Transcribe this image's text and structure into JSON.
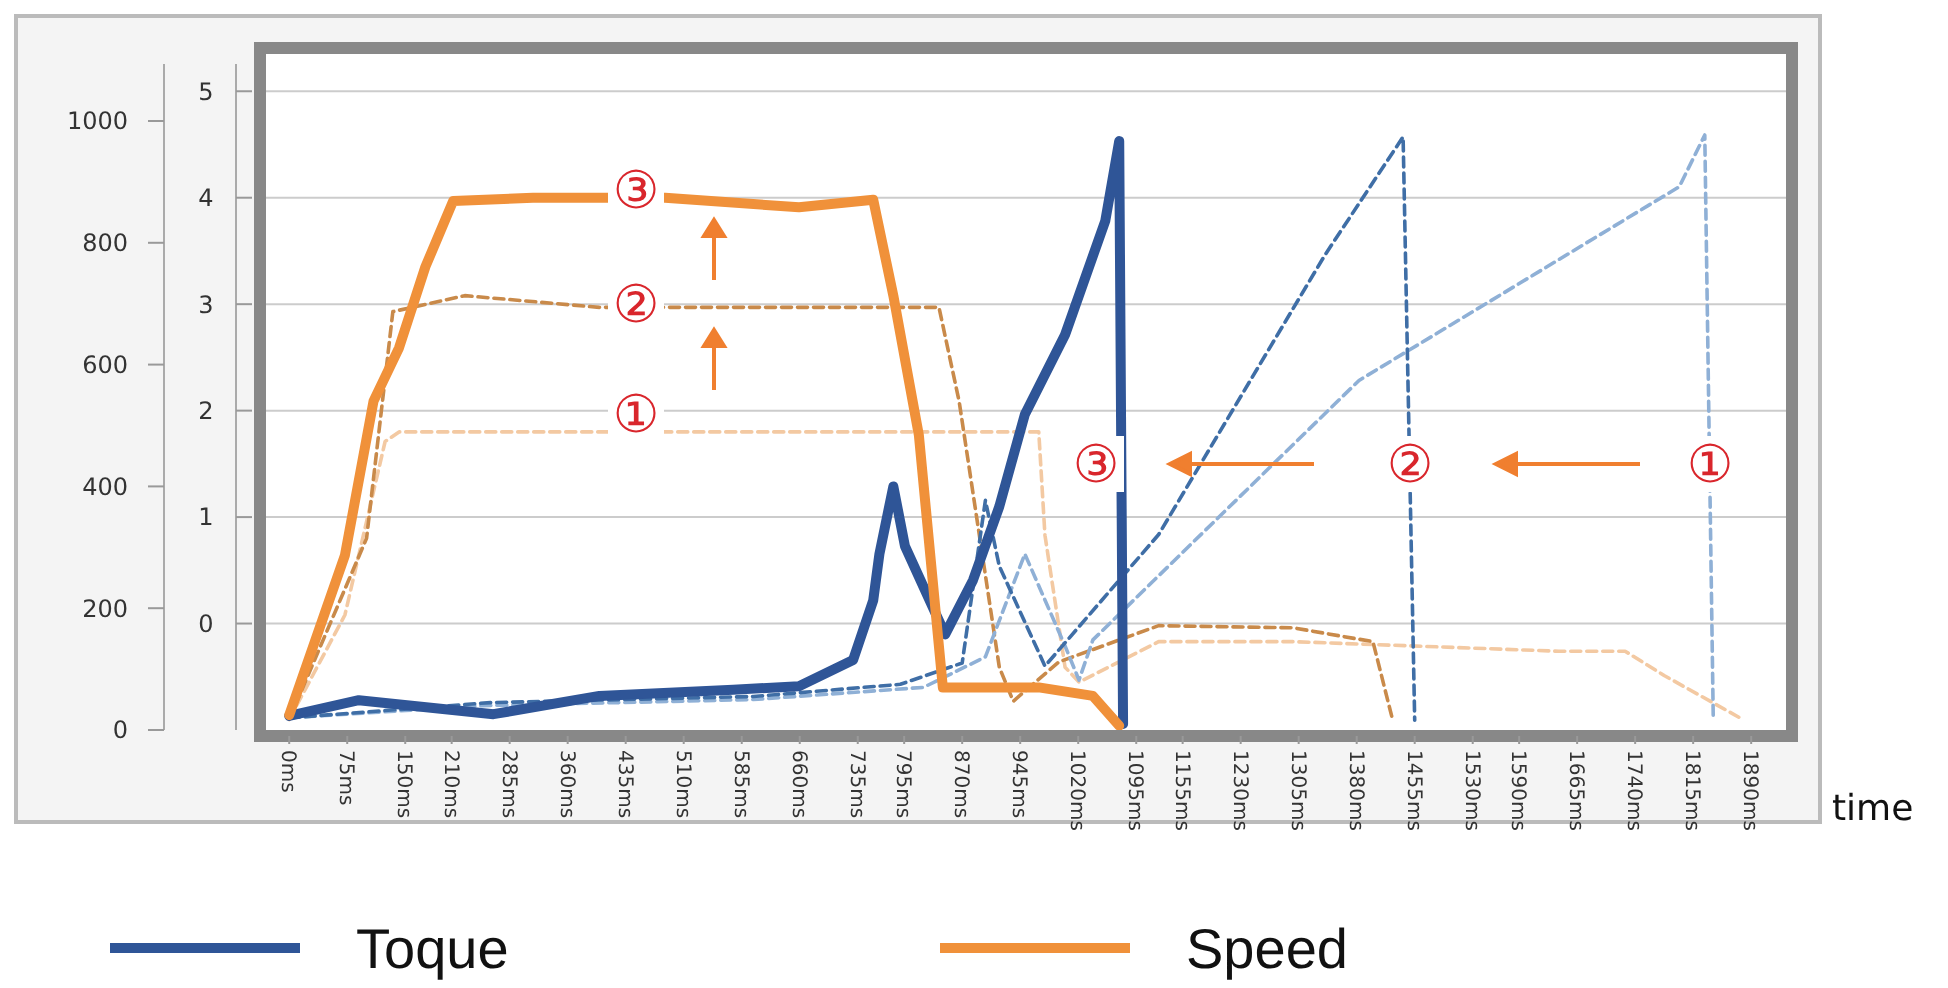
{
  "chart_data": {
    "type": "line",
    "xlabel": "time",
    "legend": "bottom",
    "grid": "y",
    "xlim": [
      -30,
      1935
    ],
    "xticks": [
      {
        "value": 0,
        "label": "0ms"
      },
      {
        "value": 75,
        "label": "75ms"
      },
      {
        "value": 150,
        "label": "150ms"
      },
      {
        "value": 210,
        "label": "210ms"
      },
      {
        "value": 285,
        "label": "285ms"
      },
      {
        "value": 360,
        "label": "360ms"
      },
      {
        "value": 435,
        "label": "435ms"
      },
      {
        "value": 510,
        "label": "510ms"
      },
      {
        "value": 585,
        "label": "585ms"
      },
      {
        "value": 660,
        "label": "660ms"
      },
      {
        "value": 735,
        "label": "735ms"
      },
      {
        "value": 795,
        "label": "795ms"
      },
      {
        "value": 870,
        "label": "870ms"
      },
      {
        "value": 945,
        "label": "945ms"
      },
      {
        "value": 1020,
        "label": "1020ms"
      },
      {
        "value": 1095,
        "label": "1095ms"
      },
      {
        "value": 1155,
        "label": "1155ms"
      },
      {
        "value": 1230,
        "label": "1230ms"
      },
      {
        "value": 1305,
        "label": "1305ms"
      },
      {
        "value": 1380,
        "label": "1380ms"
      },
      {
        "value": 1455,
        "label": "1455ms"
      },
      {
        "value": 1530,
        "label": "1530ms"
      },
      {
        "value": 1590,
        "label": "1590ms"
      },
      {
        "value": 1665,
        "label": "1665ms"
      },
      {
        "value": 1740,
        "label": "1740ms"
      },
      {
        "value": 1815,
        "label": "1815ms"
      },
      {
        "value": 1890,
        "label": "1890ms"
      }
    ],
    "ylim": [
      0,
      1110
    ],
    "yticks": [
      0,
      200,
      400,
      600,
      800,
      1000
    ],
    "y2lim": [
      -1,
      5.35
    ],
    "y2ticks": [
      0,
      1,
      2,
      3,
      4,
      5
    ],
    "series": [
      {
        "name": null,
        "color": "#f3c9a2",
        "line_style": "dashed",
        "axis": "y2",
        "x": [
          0,
          72,
          124,
          142,
          500,
          918,
          969,
          977,
          1003,
          1021,
          1124,
          1298,
          1641,
          1727,
          1778,
          1874
        ],
        "values": [
          -0.9,
          0.08,
          1.71,
          1.8,
          1.8,
          1.8,
          1.8,
          0.83,
          -0.41,
          -0.55,
          -0.17,
          -0.17,
          -0.26,
          -0.26,
          -0.49,
          -0.88
        ]
      },
      {
        "name": null,
        "color": "#c98a4a",
        "line_style": "dashed",
        "axis": "y2",
        "x": [
          0,
          100,
          134,
          227,
          401,
          840,
          866,
          918,
          936,
          995,
          1124,
          1298,
          1401,
          1427
        ],
        "values": [
          -0.9,
          0.8,
          2.93,
          3.08,
          2.97,
          2.97,
          2.09,
          -0.41,
          -0.73,
          -0.36,
          -0.02,
          -0.04,
          -0.17,
          -0.92
        ]
      },
      {
        "name": null,
        "color": "#8fb0d6",
        "line_style": "dashed",
        "axis": "y",
        "x": [
          0,
          250,
          600,
          820,
          900,
          951,
          1003,
          1021,
          1039,
          1383,
          1797,
          1830,
          1841
        ],
        "values": [
          20,
          40,
          50,
          70,
          120,
          289,
          138,
          82,
          148,
          574,
          892,
          977,
          16
        ]
      },
      {
        "name": null,
        "color": "#3f6ea6",
        "line_style": "dashed",
        "axis": "y",
        "x": [
          0,
          260,
          600,
          790,
          870,
          900,
          918,
          977,
          1124,
          1339,
          1440,
          1455
        ],
        "values": [
          20,
          45,
          55,
          75,
          110,
          377,
          269,
          105,
          321,
          780,
          974,
          16
        ]
      },
      {
        "name": "Toque",
        "color": "#2f5597",
        "line_style": "solid",
        "axis": "y",
        "x": [
          0,
          90,
          264,
          401,
          574,
          659,
          729,
          755,
          763,
          781,
          796,
          848,
          884,
          918,
          951,
          1003,
          1055,
          1073,
          1078
        ],
        "values": [
          23,
          49,
          26,
          56,
          66,
          72,
          115,
          213,
          289,
          400,
          302,
          157,
          246,
          367,
          518,
          649,
          836,
          967,
          10
        ]
      },
      {
        "name": "Speed",
        "color": "#f0913a",
        "line_style": "solid",
        "axis": "y2",
        "x": [
          0,
          72,
          109,
          142,
          176,
          212,
          315,
          486,
          659,
          755,
          781,
          814,
          845,
          969,
          1039,
          1073
        ],
        "values": [
          -0.86,
          0.64,
          2.09,
          2.59,
          3.35,
          3.97,
          4.0,
          4.0,
          3.91,
          3.98,
          3.08,
          1.77,
          -0.6,
          -0.6,
          -0.68,
          -0.96
        ]
      }
    ],
    "annotations": [
      "③",
      "②",
      "①",
      "③",
      "②",
      "①"
    ]
  }
}
